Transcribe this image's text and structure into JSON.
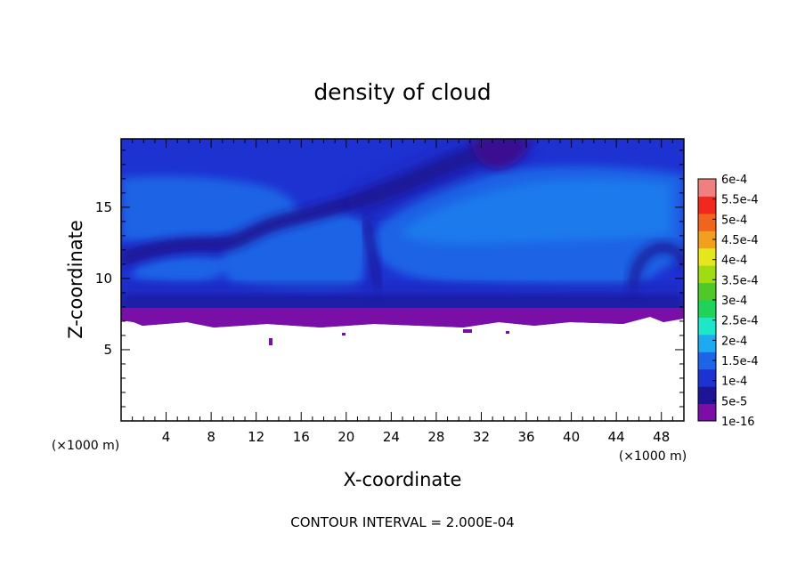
{
  "chart_data": {
    "type": "heatmap",
    "title": "density of cloud",
    "xlabel": "X-coordinate",
    "ylabel": "Z-coordinate",
    "x_unit": "(×1000 m)",
    "z_unit": "(×1000 m)",
    "xlim": [
      0,
      50
    ],
    "ylim": [
      0,
      19.8
    ],
    "x_ticks": [
      4,
      8,
      12,
      16,
      20,
      24,
      28,
      32,
      36,
      40,
      44,
      48
    ],
    "y_ticks": [
      5,
      10,
      15
    ],
    "colorbar": {
      "labels": [
        "1e-16",
        "5e-5",
        "1e-4",
        "1.5e-4",
        "2e-4",
        "2.5e-4",
        "3e-4",
        "3.5e-4",
        "4e-4",
        "4.5e-4",
        "5e-4",
        "5.5e-4",
        "6e-4"
      ],
      "colors": [
        "#7a0fa8",
        "#1e1496",
        "#1e32d2",
        "#1e64e6",
        "#1eaaf0",
        "#1ee6c8",
        "#1ed25a",
        "#50c828",
        "#a0dc14",
        "#e6e61e",
        "#f0a01e",
        "#f0641e",
        "#f0281e",
        "#f08080"
      ]
    },
    "cloud_base_km": 7.0,
    "cloud_top_km": 19.8,
    "field": {
      "regions": [
        {
          "label": "background",
          "level": "1e-4"
        },
        {
          "label": "upper-band",
          "level": "1.5e-4",
          "x": [
            0,
            14
          ],
          "z": [
            13.5,
            17.5
          ]
        },
        {
          "label": "right-core",
          "level": "1.5e-4",
          "x": [
            19,
            50
          ],
          "z": [
            10.5,
            17.5
          ]
        },
        {
          "label": "mid-core",
          "level": "1.5e-4",
          "x": [
            8,
            19
          ],
          "z": [
            10.5,
            13.5
          ]
        },
        {
          "label": "dark-filament",
          "level": "5e-5",
          "x": [
            0,
            36
          ],
          "z": [
            10,
            19.8
          ]
        },
        {
          "label": "base-layer",
          "level": "1e-16",
          "x": [
            0,
            50
          ],
          "z": [
            6.8,
            8.4
          ]
        }
      ]
    },
    "footer": "CONTOUR INTERVAL = 2.000E-04"
  }
}
